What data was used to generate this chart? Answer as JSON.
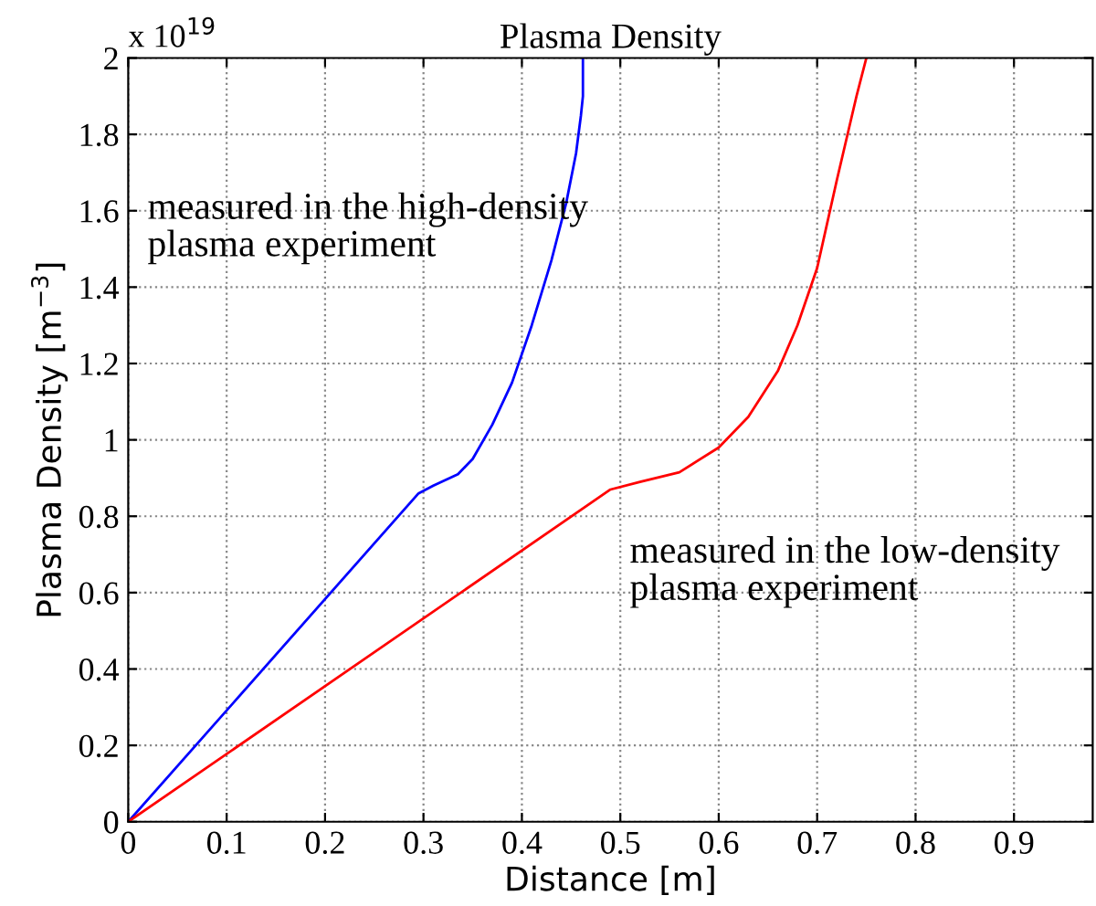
{
  "chart_data": {
    "type": "line",
    "title": "Plasma Density",
    "xlabel": "Distance [m]",
    "ylabel": "Plasma Density [m$^{−3}$]",
    "annotations": [
      "x 10$^{19}$"
    ],
    "xlim": [
      0,
      0.98
    ],
    "xticks": [
      0,
      0.1,
      0.2,
      0.3,
      0.4,
      0.5,
      0.6,
      0.7,
      0.8,
      0.9
    ],
    "ylim": [
      0,
      2
    ],
    "yticks": [
      0,
      0.2,
      0.4,
      0.6,
      0.8,
      1,
      1.2,
      1.4,
      1.6,
      1.8,
      2
    ],
    "grid": true,
    "line_style": "solid",
    "marker": "none",
    "series": [
      {
        "name": "measured in the high-density\nplasma experiment",
        "color": "#0000ff",
        "x": [
          0,
          0.295,
          0.31,
          0.335,
          0.35,
          0.37,
          0.39,
          0.41,
          0.43,
          0.445,
          0.455,
          0.46,
          0.462,
          0.462
        ],
        "values": [
          0,
          0.86,
          0.88,
          0.91,
          0.95,
          1.04,
          1.15,
          1.3,
          1.47,
          1.62,
          1.75,
          1.85,
          1.9,
          2.0
        ]
      },
      {
        "name": "measured in the low-density\nplasma experiment",
        "color": "#ff0000",
        "x": [
          0,
          0.49,
          0.52,
          0.56,
          0.6,
          0.63,
          0.66,
          0.68,
          0.7,
          0.72,
          0.74,
          0.75
        ],
        "values": [
          0,
          0.87,
          0.89,
          0.915,
          0.98,
          1.06,
          1.18,
          1.3,
          1.45,
          1.68,
          1.9,
          2.0
        ]
      }
    ]
  }
}
